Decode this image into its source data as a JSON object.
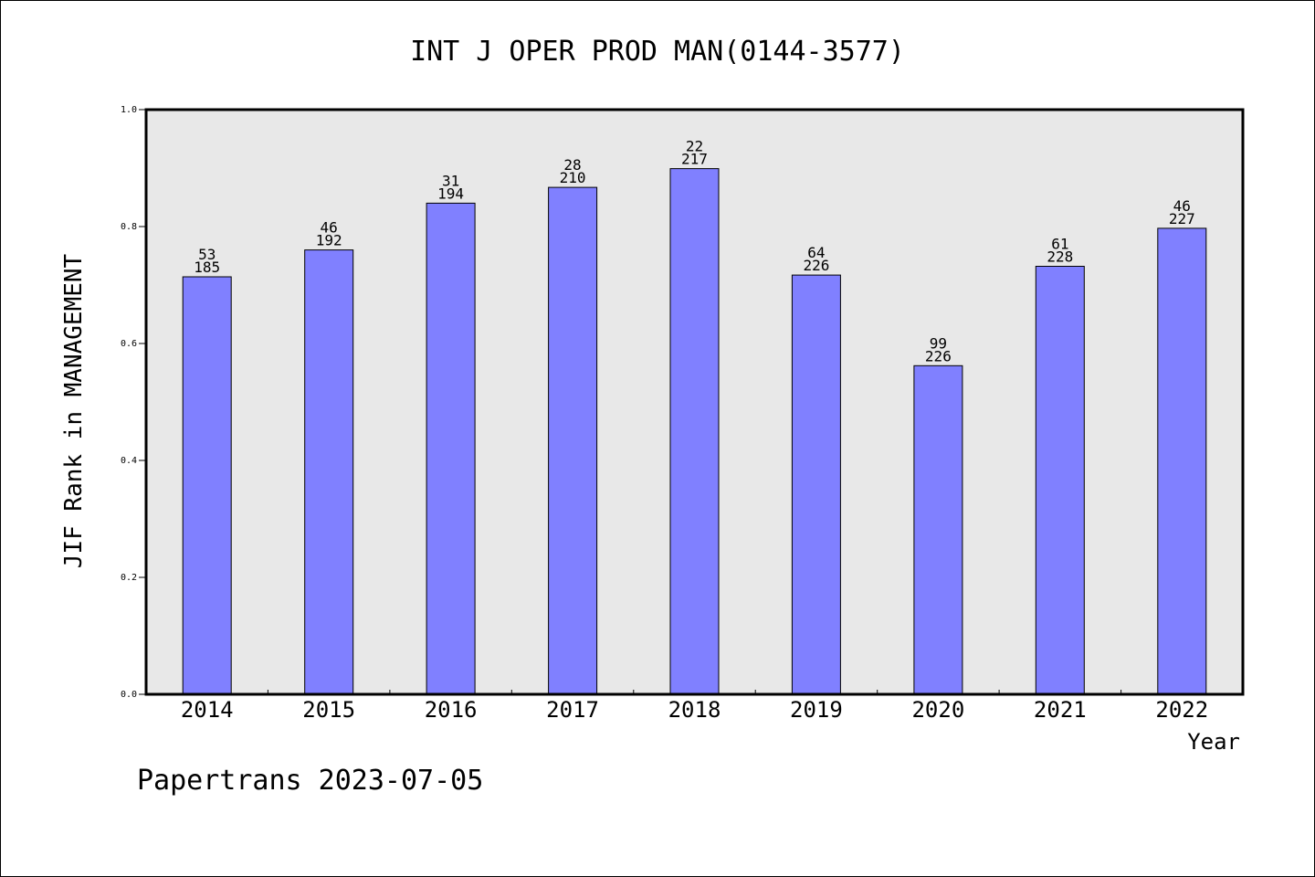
{
  "chart_data": {
    "type": "bar",
    "title": "INT J OPER PROD MAN(0144-3577)",
    "ylabel": "JIF Rank in MANAGEMENT",
    "xlabel": "Year",
    "categories": [
      "2014",
      "2015",
      "2016",
      "2017",
      "2018",
      "2019",
      "2020",
      "2021",
      "2022"
    ],
    "values": [
      0.714,
      0.76,
      0.84,
      0.867,
      0.899,
      0.717,
      0.562,
      0.732,
      0.797
    ],
    "rank": [
      "53",
      "46",
      "31",
      "28",
      "22",
      "64",
      "99",
      "61",
      "46"
    ],
    "total": [
      "185",
      "192",
      "194",
      "210",
      "217",
      "226",
      "226",
      "228",
      "227"
    ],
    "ylim": [
      0,
      1.0
    ],
    "yticks": [
      "0.0",
      "0.2",
      "0.4",
      "0.6",
      "0.8",
      "1.0"
    ],
    "grid": false,
    "legend": "none",
    "colors": {
      "bar": "#8080ff",
      "plot_background": "#e8e8e8",
      "axis": "#000000"
    }
  },
  "footer": "Papertrans 2023-07-05"
}
